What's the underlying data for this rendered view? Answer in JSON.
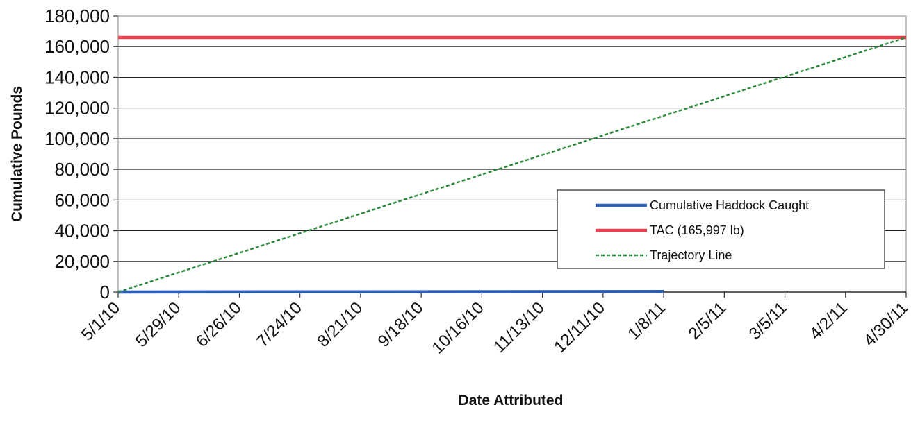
{
  "chart_data": {
    "type": "line",
    "xlabel": "Date Attributed",
    "ylabel": "Cumulative Pounds",
    "ylim": [
      0,
      180000
    ],
    "y_ticks": [
      0,
      20000,
      40000,
      60000,
      80000,
      100000,
      120000,
      140000,
      160000,
      180000
    ],
    "y_tick_labels": [
      "0",
      "20,000",
      "40,000",
      "60,000",
      "80,000",
      "100,000",
      "120,000",
      "140,000",
      "160,000",
      "180,000"
    ],
    "x_start": "2010-05-01",
    "x_end": "2011-04-30",
    "x_tick_labels": [
      "5/1/10",
      "5/29/10",
      "6/26/10",
      "7/24/10",
      "8/21/10",
      "9/18/10",
      "10/16/10",
      "11/13/10",
      "12/11/10",
      "1/8/11",
      "2/5/11",
      "3/5/11",
      "4/2/11",
      "4/30/11"
    ],
    "grid": "horizontal",
    "legend_position": "right",
    "series": [
      {
        "name": "Cumulative Haddock Caught",
        "color": "#2f5fb0",
        "style": "solid",
        "points": [
          [
            "2010-05-01",
            0
          ],
          [
            "2011-01-08",
            300
          ]
        ]
      },
      {
        "name": "TAC (165,997 lb)",
        "color": "#e8404f",
        "style": "solid",
        "points": [
          [
            "2010-05-01",
            165997
          ],
          [
            "2011-04-30",
            165997
          ]
        ]
      },
      {
        "name": "Trajectory Line",
        "color": "#2e8b3e",
        "style": "dashed",
        "points": [
          [
            "2010-05-01",
            0
          ],
          [
            "2011-04-30",
            165997
          ]
        ]
      }
    ]
  }
}
